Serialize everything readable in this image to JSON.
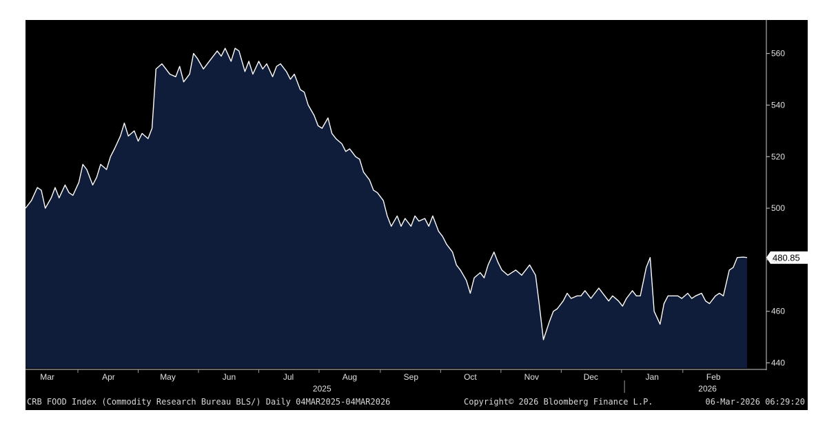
{
  "footer": {
    "description": "CRB FOOD Index (Commodity Research Bureau BLS/) Daily 04MAR2025-04MAR2026",
    "copyright": "Copyright© 2026 Bloomberg Finance L.P.",
    "timestamp": "06-Mar-2026 06:29:20"
  },
  "colors": {
    "background": "#000000",
    "area_fill": "#101d3a",
    "line": "#ffffff",
    "axis_text": "#e0e0e0",
    "last_value_label_bg": "#ffffff",
    "last_value_label_text": "#000000"
  },
  "chart_data": {
    "type": "area",
    "title": "",
    "xlabel": "",
    "ylabel": "",
    "x_range": [
      "2025-03-04",
      "2026-03-04"
    ],
    "ylim": [
      438,
      573
    ],
    "y_axis_side": "right",
    "grid": false,
    "yticks": [
      440,
      460,
      480,
      500,
      520,
      540,
      560
    ],
    "last_value_label": "480.85",
    "x_month_ticks": [
      {
        "label": "Mar",
        "date": "2025-03-15"
      },
      {
        "label": "Apr",
        "date": "2025-04-15"
      },
      {
        "label": "May",
        "date": "2025-05-15"
      },
      {
        "label": "Jun",
        "date": "2025-06-15"
      },
      {
        "label": "Jul",
        "date": "2025-07-15"
      },
      {
        "label": "Aug",
        "date": "2025-08-15"
      },
      {
        "label": "Sep",
        "date": "2025-09-15"
      },
      {
        "label": "Oct",
        "date": "2025-10-15"
      },
      {
        "label": "Nov",
        "date": "2025-11-15"
      },
      {
        "label": "Dec",
        "date": "2025-12-15"
      },
      {
        "label": "Jan",
        "date": "2026-01-15"
      },
      {
        "label": "Feb",
        "date": "2026-02-15"
      }
    ],
    "x_year_labels": [
      {
        "label": "2025",
        "date": "2025-08-01"
      },
      {
        "label": "2026",
        "date": "2026-02-12"
      }
    ],
    "series": [
      {
        "x": [
          "2025-03-04",
          "2025-03-07",
          "2025-03-10",
          "2025-03-12",
          "2025-03-14",
          "2025-03-17",
          "2025-03-19",
          "2025-03-21",
          "2025-03-24",
          "2025-03-26",
          "2025-03-28",
          "2025-03-31",
          "2025-04-02",
          "2025-04-04",
          "2025-04-07",
          "2025-04-09",
          "2025-04-11",
          "2025-04-14",
          "2025-04-16",
          "2025-04-18",
          "2025-04-21",
          "2025-04-23",
          "2025-04-25",
          "2025-04-28",
          "2025-04-30",
          "2025-05-02",
          "2025-05-05",
          "2025-05-07",
          "2025-05-09",
          "2025-05-12",
          "2025-05-14",
          "2025-05-16",
          "2025-05-19",
          "2025-05-21",
          "2025-05-23",
          "2025-05-26",
          "2025-05-28",
          "2025-05-30",
          "2025-06-02",
          "2025-06-04",
          "2025-06-06",
          "2025-06-09",
          "2025-06-11",
          "2025-06-13",
          "2025-06-16",
          "2025-06-18",
          "2025-06-20",
          "2025-06-23",
          "2025-06-25",
          "2025-06-27",
          "2025-06-30",
          "2025-07-02",
          "2025-07-04",
          "2025-07-07",
          "2025-07-09",
          "2025-07-11",
          "2025-07-14",
          "2025-07-16",
          "2025-07-18",
          "2025-07-21",
          "2025-07-23",
          "2025-07-25",
          "2025-07-28",
          "2025-07-30",
          "2025-08-01",
          "2025-08-04",
          "2025-08-06",
          "2025-08-08",
          "2025-08-11",
          "2025-08-13",
          "2025-08-15",
          "2025-08-18",
          "2025-08-20",
          "2025-08-22",
          "2025-08-25",
          "2025-08-27",
          "2025-08-29",
          "2025-09-01",
          "2025-09-03",
          "2025-09-05",
          "2025-09-08",
          "2025-09-10",
          "2025-09-12",
          "2025-09-15",
          "2025-09-17",
          "2025-09-19",
          "2025-09-22",
          "2025-09-24",
          "2025-09-26",
          "2025-09-29",
          "2025-10-01",
          "2025-10-03",
          "2025-10-06",
          "2025-10-08",
          "2025-10-10",
          "2025-10-13",
          "2025-10-15",
          "2025-10-17",
          "2025-10-20",
          "2025-10-22",
          "2025-10-24",
          "2025-10-27",
          "2025-10-29",
          "2025-10-31",
          "2025-11-03",
          "2025-11-05",
          "2025-11-07",
          "2025-11-10",
          "2025-11-12",
          "2025-11-14",
          "2025-11-17",
          "2025-11-19",
          "2025-11-21",
          "2025-11-24",
          "2025-11-26",
          "2025-11-28",
          "2025-12-01",
          "2025-12-03",
          "2025-12-05",
          "2025-12-08",
          "2025-12-10",
          "2025-12-12",
          "2025-12-15",
          "2025-12-17",
          "2025-12-19",
          "2025-12-22",
          "2025-12-24",
          "2025-12-26",
          "2025-12-29",
          "2025-12-31",
          "2026-01-02",
          "2026-01-05",
          "2026-01-07",
          "2026-01-09",
          "2026-01-12",
          "2026-01-14",
          "2026-01-16",
          "2026-01-19",
          "2026-01-21",
          "2026-01-23",
          "2026-01-26",
          "2026-01-28",
          "2026-01-30",
          "2026-02-02",
          "2026-02-04",
          "2026-02-06",
          "2026-02-09",
          "2026-02-11",
          "2026-02-13",
          "2026-02-16",
          "2026-02-18",
          "2026-02-20",
          "2026-02-23",
          "2026-02-25",
          "2026-02-27",
          "2026-03-02",
          "2026-03-04"
        ],
        "values": [
          500,
          503,
          508,
          507,
          500,
          504,
          508,
          504,
          509,
          506,
          505,
          510,
          517,
          515,
          509,
          512,
          517,
          515,
          520,
          523,
          528,
          533,
          528,
          530,
          526,
          529,
          527,
          531,
          554,
          556,
          554,
          552,
          551,
          555,
          549,
          552,
          560,
          558,
          554,
          556,
          558,
          561,
          559,
          562,
          557,
          562,
          561,
          553,
          557,
          552,
          557,
          554,
          556,
          551,
          555,
          556,
          553,
          550,
          552,
          546,
          545,
          540,
          536,
          532,
          531,
          535,
          529,
          527,
          525,
          522,
          523,
          520,
          519,
          514,
          511,
          507,
          506,
          503,
          497,
          493,
          497,
          493,
          496,
          493,
          497,
          495,
          496,
          493,
          497,
          491,
          489,
          486,
          483,
          478,
          476,
          472,
          467,
          473,
          475,
          473,
          478,
          483,
          479,
          476,
          474,
          475,
          476,
          474,
          476,
          478,
          474,
          462,
          449,
          456,
          460,
          461,
          464,
          467,
          465,
          466,
          466,
          468,
          465,
          467,
          469,
          466,
          464,
          466,
          464,
          462,
          465,
          468,
          466,
          466,
          477,
          480.85,
          460,
          455,
          463,
          466,
          466,
          466,
          465,
          467,
          465,
          466,
          467,
          464,
          463,
          466,
          467,
          466,
          476,
          477,
          480.85,
          481,
          480.85
        ]
      }
    ]
  }
}
